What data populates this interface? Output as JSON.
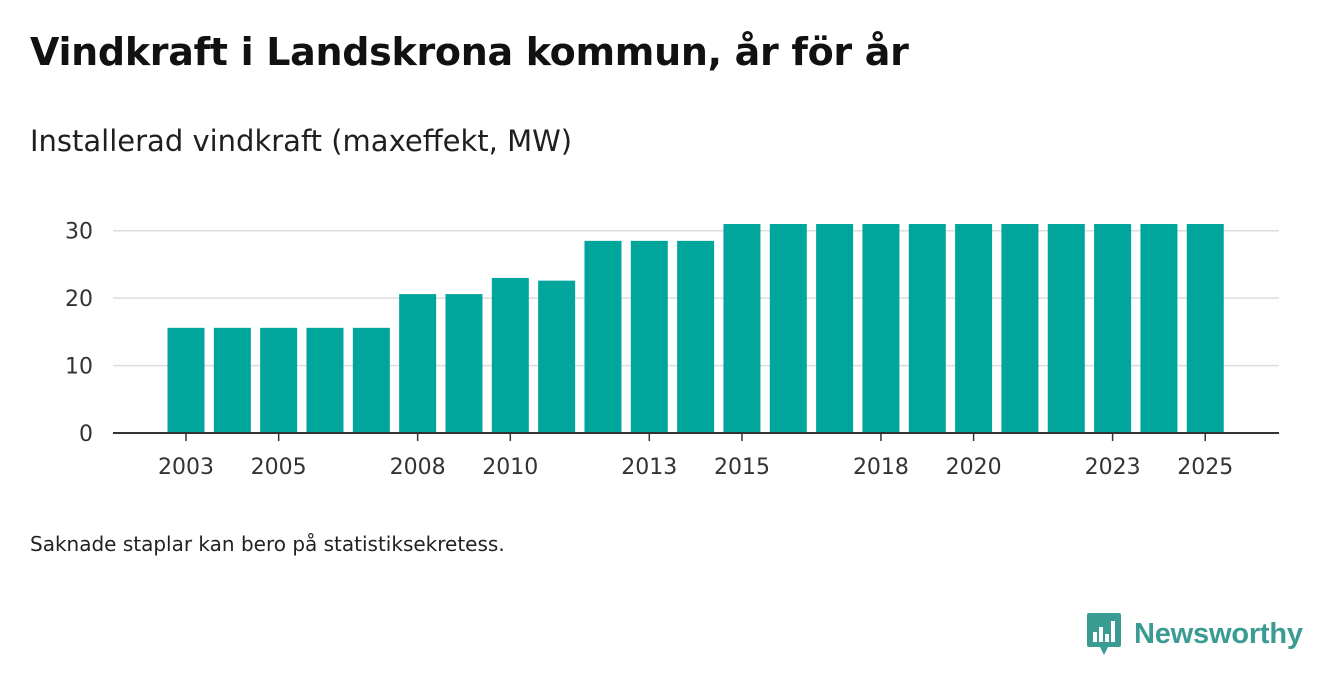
{
  "header": {
    "title": "Vindkraft i Landskrona kommun, år för år",
    "subtitle": "Installerad vindkraft (maxeffekt, MW)"
  },
  "footnote": "Saknade staplar kan bero på statistiksekretess.",
  "brand": {
    "name": "Newsworthy",
    "color": "#3a9b92"
  },
  "colors": {
    "bar": "#00a59b",
    "grid": "#dddddd",
    "axis": "#333333",
    "tick_text": "#333333"
  },
  "chart_data": {
    "type": "bar",
    "title": "Vindkraft i Landskrona kommun, år för år",
    "subtitle": "Installerad vindkraft (maxeffekt, MW)",
    "xlabel": "",
    "ylabel": "Installerad vindkraft (maxeffekt, MW)",
    "categories": [
      2003,
      2004,
      2005,
      2006,
      2007,
      2008,
      2009,
      2010,
      2011,
      2012,
      2013,
      2014,
      2015,
      2016,
      2017,
      2018,
      2019,
      2020,
      2021,
      2022,
      2023,
      2024,
      2025
    ],
    "values": [
      15.6,
      15.6,
      15.6,
      15.6,
      15.6,
      20.6,
      20.6,
      23.0,
      22.6,
      28.5,
      28.5,
      28.5,
      31.0,
      31.0,
      31.0,
      31.0,
      31.0,
      31.0,
      31.0,
      31.0,
      31.0,
      31.0,
      31.0
    ],
    "x_tick_labels": [
      "2003",
      "2005",
      "2008",
      "2010",
      "2013",
      "2015",
      "2018",
      "2020",
      "2023",
      "2025"
    ],
    "y_ticks": [
      0,
      10,
      20,
      30
    ],
    "ylim": [
      0,
      31
    ],
    "grid": true,
    "legend": "none"
  }
}
